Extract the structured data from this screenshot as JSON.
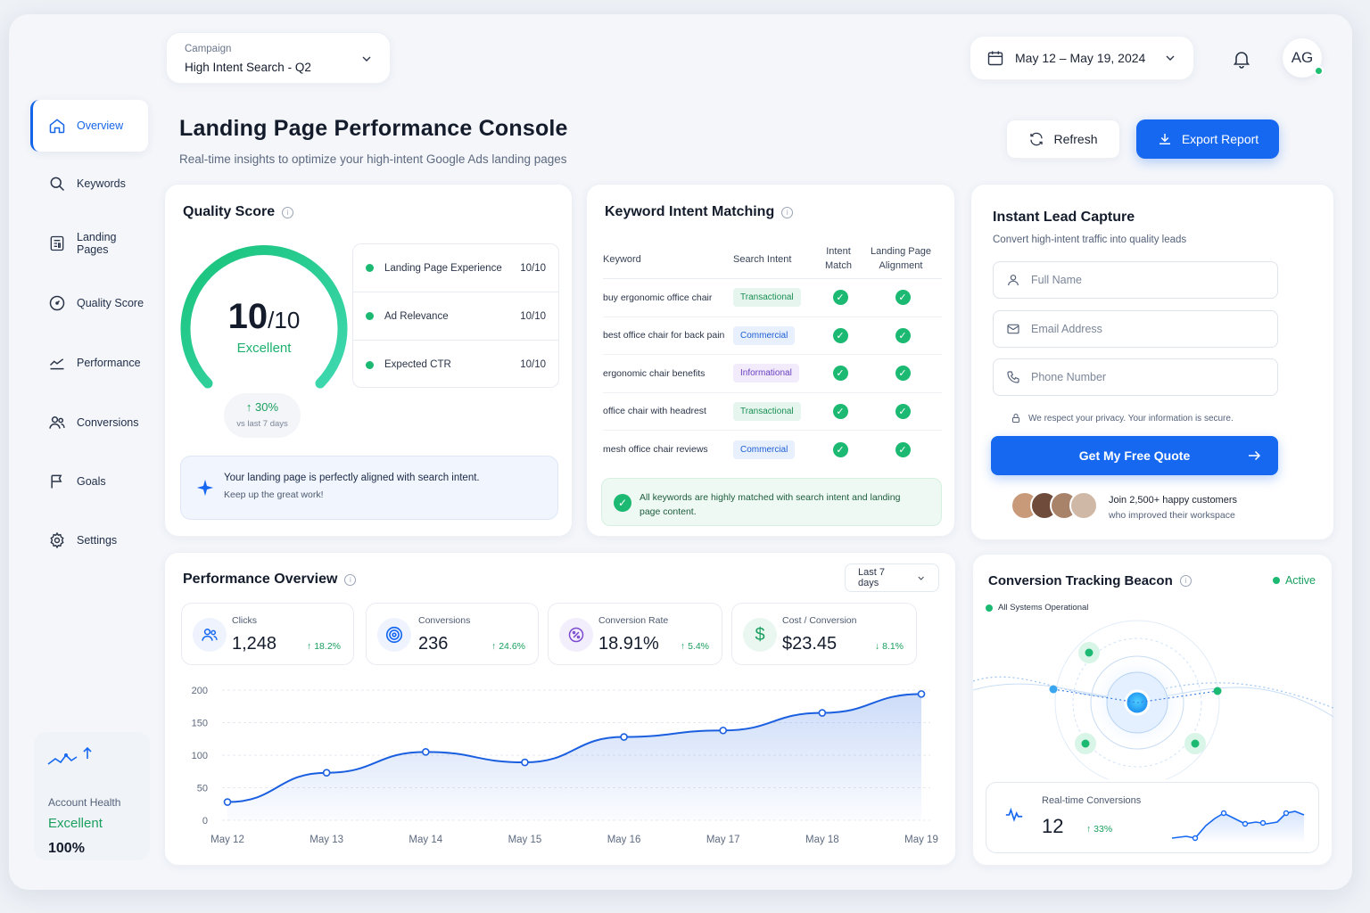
{
  "campaign": {
    "label": "Campaign",
    "value": "High Intent Search - Q2"
  },
  "date_range": "May 12 – May 19, 2024",
  "user": {
    "initials": "AG"
  },
  "sidebar": {
    "items": [
      {
        "label": "Overview",
        "icon": "home-icon"
      },
      {
        "label": "Keywords",
        "icon": "search-icon"
      },
      {
        "label": "Landing Pages",
        "icon": "landing-page-icon"
      },
      {
        "label": "Quality Score",
        "icon": "gauge-icon"
      },
      {
        "label": "Performance",
        "icon": "trend-icon"
      },
      {
        "label": "Conversions",
        "icon": "users-icon"
      },
      {
        "label": "Goals",
        "icon": "flag-icon"
      },
      {
        "label": "Settings",
        "icon": "gear-icon"
      }
    ],
    "health": {
      "label": "Account Health",
      "status": "Excellent",
      "value": "100%"
    }
  },
  "page": {
    "title": "Landing Page Performance Console",
    "subtitle": "Real-time insights to optimize your high-intent Google Ads landing pages",
    "refresh_label": "Refresh",
    "export_label": "Export Report"
  },
  "quality": {
    "title": "Quality Score",
    "score": "10",
    "max": "/10",
    "score_fraction": 1.0,
    "rating": "Excellent",
    "trend": "30%",
    "trend_note": "vs last 7 days",
    "rows": [
      {
        "label": "Landing Page Experience",
        "value": "10/10"
      },
      {
        "label": "Ad Relevance",
        "value": "10/10"
      },
      {
        "label": "Expected CTR",
        "value": "10/10"
      }
    ],
    "message_line1": "Your landing page is perfectly aligned with search intent.",
    "message_line2": "Keep up the great work!"
  },
  "keywords": {
    "title": "Keyword Intent Matching",
    "headers": {
      "keyword": "Keyword",
      "intent": "Search Intent",
      "match": "Intent Match",
      "align": "Landing Page Alignment"
    },
    "rows": [
      {
        "keyword": "buy ergonomic office chair",
        "intent": "Transactional"
      },
      {
        "keyword": "best office chair for back pain",
        "intent": "Commercial"
      },
      {
        "keyword": "ergonomic chair benefits",
        "intent": "Informational"
      },
      {
        "keyword": "office chair with headrest",
        "intent": "Transactional"
      },
      {
        "keyword": "mesh office chair reviews",
        "intent": "Commercial"
      }
    ],
    "summary": "All keywords are highly matched with search intent and landing page content."
  },
  "lead": {
    "title": "Instant Lead Capture",
    "subtitle": "Convert high-intent traffic into quality leads",
    "name_placeholder": "Full Name",
    "email_placeholder": "Email Address",
    "phone_placeholder": "Phone Number",
    "privacy": "We respect your privacy. Your information is secure.",
    "cta": "Get My Free Quote",
    "social_line1": "Join 2,500+ happy customers",
    "social_line2": "who improved their workspace"
  },
  "performance": {
    "title": "Performance Overview",
    "range": "Last 7 days",
    "metrics": [
      {
        "label": "Clicks",
        "value": "1,248",
        "change": "18.2%",
        "dir": "up"
      },
      {
        "label": "Conversions",
        "value": "236",
        "change": "24.6%",
        "dir": "up"
      },
      {
        "label": "Conversion Rate",
        "value": "18.91%",
        "change": "5.4%",
        "dir": "up"
      },
      {
        "label": "Cost / Conversion",
        "value": "$23.45",
        "change": "8.1%",
        "dir": "down"
      }
    ]
  },
  "chart_data": {
    "type": "area",
    "categories": [
      "May 12",
      "May 13",
      "May 14",
      "May 15",
      "May 16",
      "May 17",
      "May 18",
      "May 19"
    ],
    "values": [
      28,
      73,
      105,
      89,
      128,
      138,
      165,
      194
    ],
    "ylim": [
      0,
      200
    ],
    "yticks": [
      0,
      50,
      100,
      150,
      200
    ],
    "grid": true,
    "color": "#1a5fe0"
  },
  "beacon": {
    "title": "Conversion Tracking Beacon",
    "status": "Active",
    "system": "All Systems Operational",
    "rt_label": "Real-time Conversions",
    "rt_value": "12",
    "rt_change": "33%"
  }
}
